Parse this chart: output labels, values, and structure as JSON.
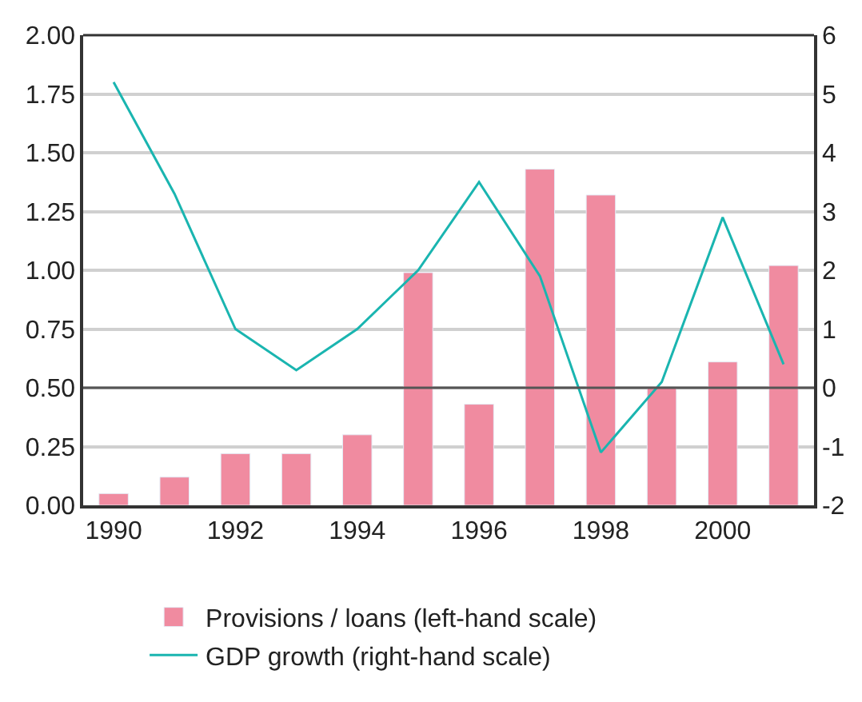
{
  "chart_data": {
    "type": "bar",
    "x": [
      1990,
      1991,
      1992,
      1993,
      1994,
      1995,
      1996,
      1997,
      1998,
      1999,
      2000,
      2001
    ],
    "series": [
      {
        "name": "Provisions / loans (left-hand scale)",
        "color": "#f08ba0",
        "values": [
          0.05,
          0.12,
          0.22,
          0.22,
          0.3,
          0.99,
          0.43,
          1.43,
          1.32,
          0.5,
          0.61,
          1.02
        ]
      },
      {
        "name": "GDP growth (right-hand scale)",
        "type": "line",
        "axis": "y2",
        "color": "#1ab5b0",
        "values": [
          5.2,
          3.3,
          1.0,
          0.3,
          1.0,
          2.0,
          3.5,
          1.9,
          -1.1,
          0.1,
          2.9,
          0.4
        ]
      }
    ],
    "xlim": [
      1989.5,
      2001.5
    ],
    "xticks": [
      1990,
      1992,
      1994,
      1996,
      1998,
      2000
    ],
    "ylim": [
      0,
      2
    ],
    "yticks": [
      {
        "value": 0,
        "label": "0.00"
      },
      {
        "value": 0.25,
        "label": "0.25"
      },
      {
        "value": 0.5,
        "label": "0.50"
      },
      {
        "value": 0.75,
        "label": "0.75"
      },
      {
        "value": 1,
        "label": "1.00"
      },
      {
        "value": 1.25,
        "label": "1.25"
      },
      {
        "value": 1.5,
        "label": "1.50"
      },
      {
        "value": 1.75,
        "label": "1.75"
      },
      {
        "value": 2,
        "label": "2.00"
      }
    ],
    "y2lim": [
      -2,
      6
    ],
    "y2ticks": [
      -2,
      -1,
      0,
      1,
      2,
      3,
      4,
      5,
      6
    ],
    "ref_lines": [
      {
        "axis": "y2",
        "value": 0,
        "color": "#555555"
      }
    ],
    "grid": "y",
    "legend": "bottom",
    "marker": "none",
    "line_style": "solid"
  }
}
